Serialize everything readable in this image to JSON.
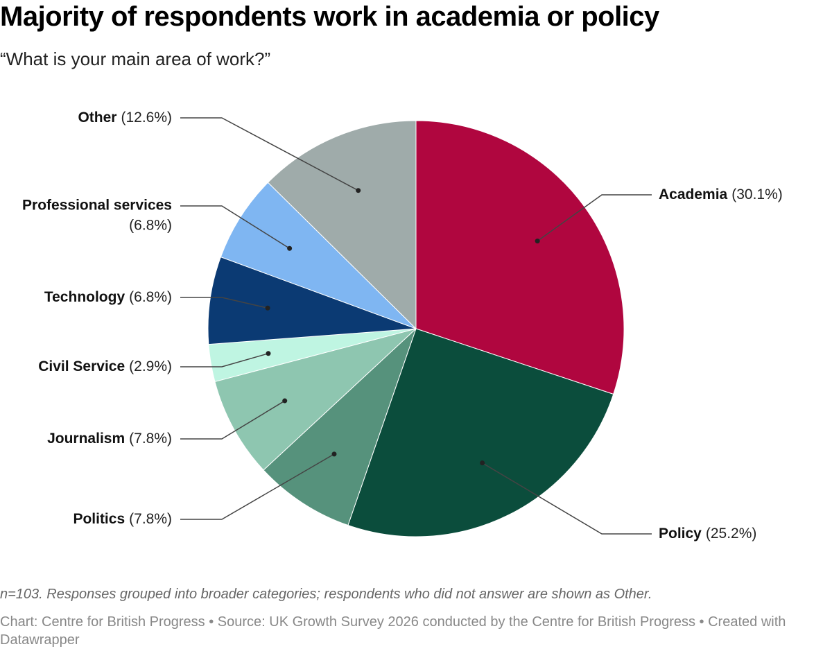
{
  "chart_data": {
    "type": "pie",
    "title": "Majority of respondents work in academia or policy",
    "subtitle": "“What is your main area of work?”",
    "categories": [
      "Academia",
      "Policy",
      "Politics",
      "Journalism",
      "Civil Service",
      "Technology",
      "Professional services",
      "Other"
    ],
    "values": [
      30.1,
      25.2,
      7.8,
      7.8,
      2.9,
      6.8,
      6.8,
      12.6
    ],
    "value_labels": [
      "(30.1%)",
      "(25.2%)",
      "(7.8%)",
      "(7.8%)",
      "(2.9%)",
      "(6.8%)",
      "(6.8%)",
      "(12.6%)"
    ],
    "colors": [
      "#b0063f",
      "#0b4d3c",
      "#56927c",
      "#8ec6b0",
      "#bff5e2",
      "#0b3a73",
      "#7fb6f2",
      "#9fabaa"
    ],
    "note": "n=103. Responses grouped into broader categories; respondents who did not answer are shown as Other.",
    "source": "Chart: Centre for British Progress • Source: UK Growth Survey 2026 conducted by the Centre for British Progress • Created with Datawrapper"
  }
}
